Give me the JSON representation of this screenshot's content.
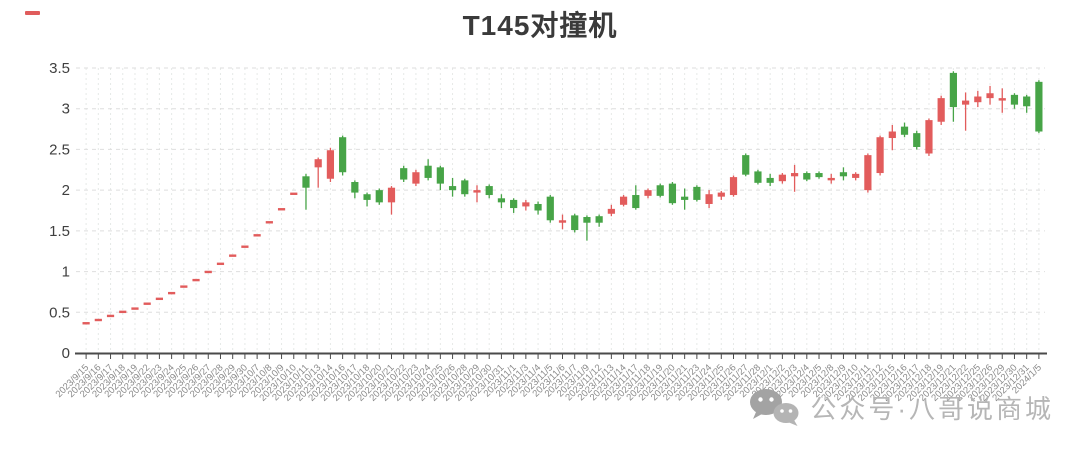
{
  "page": {
    "title": "T145对撞机"
  },
  "watermark": {
    "text": "公众号·八哥说商城",
    "icon": "wechat-icon",
    "color": "#b6b6b6"
  },
  "chart_data": {
    "type": "candlestick",
    "title": "T145对撞机",
    "xlabel": "",
    "ylabel": "",
    "ylim": [
      0,
      3.5
    ],
    "yticks": [
      0,
      0.5,
      1,
      1.5,
      2,
      2.5,
      3,
      3.5
    ],
    "ytick_labels": [
      "0",
      "0.5",
      "1",
      "1.5",
      "2",
      "2.5",
      "3",
      "3.5"
    ],
    "grid": true,
    "legend_position": "none",
    "colors": {
      "up": "#e25c5c",
      "down": "#47a447",
      "axis": "#4a4a4a",
      "grid": "#e6e9e7"
    },
    "categories": [
      "2023/9/15",
      "2023/9/16",
      "2023/9/17",
      "2023/9/18",
      "2023/9/19",
      "2023/9/22",
      "2023/9/23",
      "2023/9/24",
      "2023/9/25",
      "2023/9/26",
      "2023/9/27",
      "2023/9/28",
      "2023/9/29",
      "2023/9/30",
      "2023/10/7",
      "2023/10/8",
      "2023/10/9",
      "2023/10/10",
      "2023/10/11",
      "2023/10/13",
      "2023/10/14",
      "2023/10/16",
      "2023/10/17",
      "2023/10/18",
      "2023/10/20",
      "2023/10/21",
      "2023/10/22",
      "2023/10/23",
      "2023/10/24",
      "2023/10/25",
      "2023/10/26",
      "2023/10/28",
      "2023/10/29",
      "2023/10/30",
      "2023/10/31",
      "2023/11/1",
      "2023/11/3",
      "2023/11/4",
      "2023/11/5",
      "2023/11/6",
      "2023/11/7",
      "2023/11/9",
      "2023/11/12",
      "2023/11/13",
      "2023/11/14",
      "2023/11/17",
      "2023/11/18",
      "2023/11/19",
      "2023/11/20",
      "2023/11/21",
      "2023/11/23",
      "2023/11/24",
      "2023/11/25",
      "2023/11/26",
      "2023/11/27",
      "2023/11/28",
      "2023/12/1",
      "2023/12/2",
      "2023/12/3",
      "2023/12/4",
      "2023/12/5",
      "2023/12/8",
      "2023/12/9",
      "2023/12/10",
      "2023/12/11",
      "2023/12/12",
      "2023/12/15",
      "2023/12/16",
      "2023/12/17",
      "2023/12/18",
      "2023/12/19",
      "2023/12/21",
      "2023/12/22",
      "2023/12/25",
      "2023/12/26",
      "2023/12/29",
      "2023/12/30",
      "2023/12/31",
      "2024/1/5"
    ],
    "series": [
      {
        "name": "price",
        "format": "[open, high, low, close]",
        "values": [
          [
            0.38,
            0.38,
            0.38,
            0.38
          ],
          [
            0.42,
            0.42,
            0.42,
            0.42
          ],
          [
            0.47,
            0.47,
            0.47,
            0.47
          ],
          [
            0.52,
            0.52,
            0.52,
            0.52
          ],
          [
            0.56,
            0.56,
            0.56,
            0.56
          ],
          [
            0.62,
            0.62,
            0.62,
            0.62
          ],
          [
            0.68,
            0.68,
            0.68,
            0.68
          ],
          [
            0.75,
            0.75,
            0.75,
            0.75
          ],
          [
            0.83,
            0.83,
            0.83,
            0.83
          ],
          [
            0.91,
            0.91,
            0.91,
            0.91
          ],
          [
            1.01,
            1.01,
            1.01,
            1.01
          ],
          [
            1.11,
            1.11,
            1.11,
            1.11
          ],
          [
            1.21,
            1.21,
            1.21,
            1.21
          ],
          [
            1.32,
            1.32,
            1.32,
            1.32
          ],
          [
            1.46,
            1.46,
            1.46,
            1.46
          ],
          [
            1.62,
            1.62,
            1.62,
            1.62
          ],
          [
            1.78,
            1.78,
            1.78,
            1.78
          ],
          [
            1.97,
            1.97,
            1.97,
            1.97
          ],
          [
            2.17,
            2.2,
            1.76,
            2.03
          ],
          [
            2.28,
            2.4,
            2.03,
            2.38
          ],
          [
            2.14,
            2.52,
            2.1,
            2.49
          ],
          [
            2.65,
            2.67,
            2.18,
            2.22
          ],
          [
            2.1,
            2.12,
            1.9,
            1.97
          ],
          [
            1.95,
            1.97,
            1.8,
            1.88
          ],
          [
            2.0,
            2.02,
            1.82,
            1.85
          ],
          [
            1.85,
            2.05,
            1.7,
            2.03
          ],
          [
            2.27,
            2.3,
            2.1,
            2.13
          ],
          [
            2.08,
            2.25,
            2.05,
            2.22
          ],
          [
            2.3,
            2.38,
            2.12,
            2.15
          ],
          [
            2.28,
            2.3,
            2.0,
            2.08
          ],
          [
            2.05,
            2.15,
            1.92,
            2.0
          ],
          [
            2.12,
            2.14,
            1.92,
            1.95
          ],
          [
            1.97,
            2.06,
            1.85,
            2.0
          ],
          [
            2.05,
            2.07,
            1.9,
            1.94
          ],
          [
            1.9,
            1.95,
            1.78,
            1.85
          ],
          [
            1.88,
            1.9,
            1.72,
            1.78
          ],
          [
            1.8,
            1.88,
            1.75,
            1.85
          ],
          [
            1.83,
            1.86,
            1.7,
            1.75
          ],
          [
            1.92,
            1.94,
            1.6,
            1.63
          ],
          [
            1.6,
            1.7,
            1.52,
            1.63
          ],
          [
            1.69,
            1.71,
            1.48,
            1.51
          ],
          [
            1.67,
            1.69,
            1.38,
            1.6
          ],
          [
            1.68,
            1.7,
            1.55,
            1.6
          ],
          [
            1.71,
            1.82,
            1.68,
            1.77
          ],
          [
            1.82,
            1.94,
            1.8,
            1.92
          ],
          [
            1.94,
            2.06,
            1.76,
            1.78
          ],
          [
            1.93,
            2.02,
            1.9,
            2.0
          ],
          [
            2.06,
            2.08,
            1.91,
            1.93
          ],
          [
            2.08,
            2.1,
            1.82,
            1.84
          ],
          [
            1.92,
            2.02,
            1.76,
            1.88
          ],
          [
            2.04,
            2.06,
            1.86,
            1.88
          ],
          [
            1.83,
            2.0,
            1.78,
            1.95
          ],
          [
            1.92,
            1.99,
            1.88,
            1.97
          ],
          [
            1.94,
            2.18,
            1.92,
            2.16
          ],
          [
            2.43,
            2.45,
            2.17,
            2.19
          ],
          [
            2.23,
            2.25,
            2.07,
            2.09
          ],
          [
            2.15,
            2.2,
            2.05,
            2.09
          ],
          [
            2.11,
            2.21,
            2.08,
            2.19
          ],
          [
            2.17,
            2.31,
            1.98,
            2.21
          ],
          [
            2.21,
            2.23,
            2.11,
            2.13
          ],
          [
            2.21,
            2.23,
            2.14,
            2.16
          ],
          [
            2.13,
            2.2,
            2.08,
            2.15
          ],
          [
            2.22,
            2.28,
            2.12,
            2.17
          ],
          [
            2.15,
            2.22,
            2.12,
            2.2
          ],
          [
            2.0,
            2.45,
            1.97,
            2.43
          ],
          [
            2.21,
            2.67,
            2.18,
            2.65
          ],
          [
            2.64,
            2.8,
            2.49,
            2.72
          ],
          [
            2.78,
            2.83,
            2.65,
            2.68
          ],
          [
            2.7,
            2.73,
            2.5,
            2.53
          ],
          [
            2.45,
            2.88,
            2.42,
            2.86
          ],
          [
            2.84,
            3.16,
            2.8,
            3.13
          ],
          [
            3.44,
            3.46,
            2.84,
            3.02
          ],
          [
            3.05,
            3.2,
            2.73,
            3.1
          ],
          [
            3.08,
            3.22,
            3.02,
            3.15
          ],
          [
            3.13,
            3.28,
            3.05,
            3.19
          ],
          [
            3.1,
            3.25,
            2.95,
            3.13
          ],
          [
            3.17,
            3.19,
            3.0,
            3.05
          ],
          [
            3.15,
            3.17,
            2.95,
            3.03
          ],
          [
            3.33,
            3.35,
            2.7,
            2.72
          ]
        ]
      }
    ]
  }
}
